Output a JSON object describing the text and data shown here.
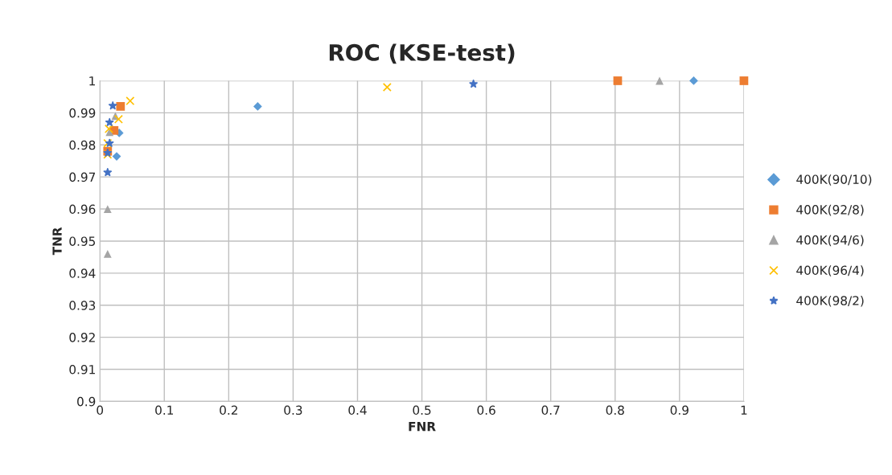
{
  "chart_data": {
    "type": "scatter",
    "title": "ROC (KSE-test)",
    "xlabel": "FNR",
    "ylabel": "TNR",
    "xlim": [
      0,
      1
    ],
    "xticks": [
      0,
      0.1,
      0.2,
      0.3,
      0.4,
      0.5,
      0.6,
      0.7,
      0.8,
      0.9,
      1
    ],
    "ylim": [
      0.9,
      1
    ],
    "yticks": [
      0.9,
      0.91,
      0.92,
      0.93,
      0.94,
      0.95,
      0.96,
      0.97,
      0.98,
      0.99,
      1
    ],
    "grid": true,
    "legend": "right",
    "series": [
      {
        "name": "400K(90/10)",
        "color": "#5b9bd5",
        "marker": "diamond",
        "x": [
          0.03,
          0.026,
          0.245,
          0.922
        ],
        "values": [
          0.9837,
          0.9764,
          0.992,
          1
        ]
      },
      {
        "name": "400K(92/8)",
        "color": "#ed7d31",
        "marker": "square",
        "x": [
          0.032,
          0.022,
          0.012,
          0.804,
          1
        ],
        "values": [
          0.992,
          0.9845,
          0.978,
          1,
          1
        ]
      },
      {
        "name": "400K(94/6)",
        "color": "#a5a5a5",
        "marker": "triangle",
        "x": [
          0.024,
          0.015,
          0.012,
          0.012,
          0.869
        ],
        "values": [
          0.989,
          0.984,
          0.96,
          0.946,
          1
        ]
      },
      {
        "name": "400K(96/4)",
        "color": "#ffc000",
        "marker": "cross",
        "x": [
          0.047,
          0.029,
          0.014,
          0.012,
          0.012,
          0.446
        ],
        "values": [
          0.9937,
          0.988,
          0.985,
          0.9805,
          0.977,
          0.998
        ]
      },
      {
        "name": "400K(98/2)",
        "color": "#4472c4",
        "marker": "star",
        "x": [
          0.02,
          0.015,
          0.015,
          0.012,
          0.012,
          0.58
        ],
        "values": [
          0.9922,
          0.987,
          0.9805,
          0.9775,
          0.9714,
          0.999
        ]
      }
    ]
  }
}
